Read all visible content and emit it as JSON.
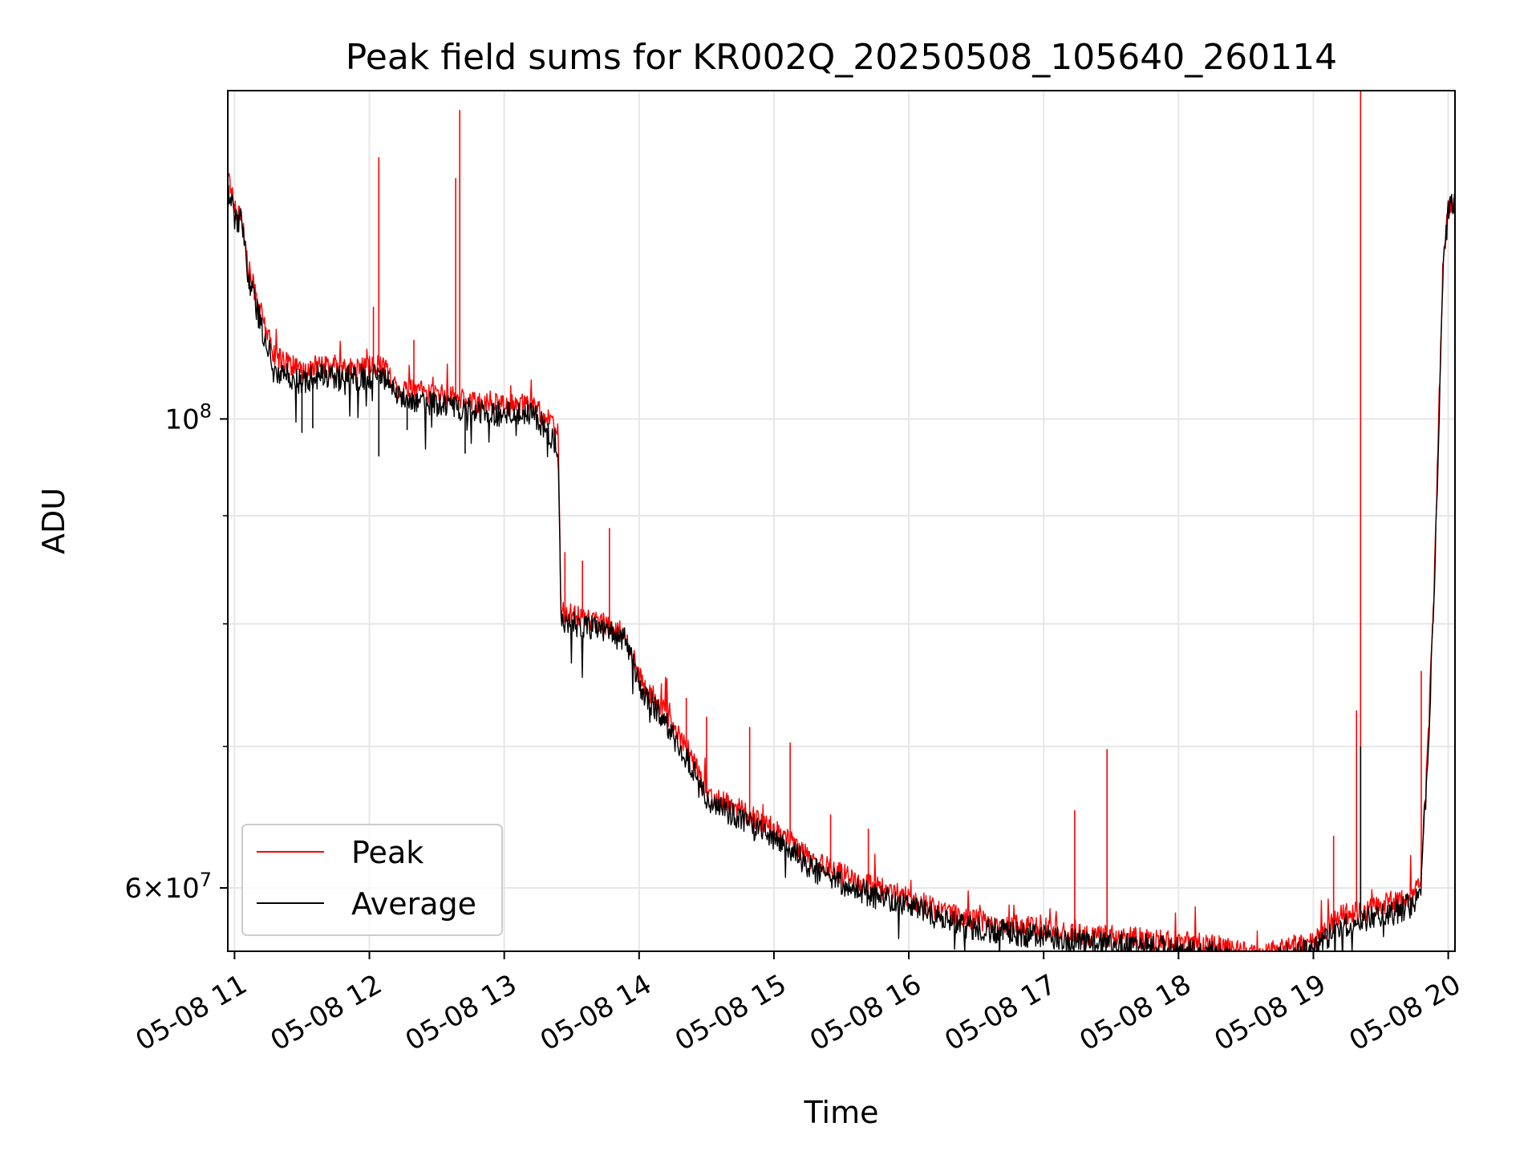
{
  "chart_data": {
    "type": "line",
    "title": "Peak field sums for KR002Q_20250508_105640_260114",
    "xlabel": "Time",
    "ylabel": "ADU",
    "x_unit": "hours of day, 2025-05-08",
    "xlim": [
      10.95,
      20.05
    ],
    "ylim": [
      56000000,
      143000000
    ],
    "yscale": "log",
    "grid": true,
    "legend_position": "lower-left",
    "x_ticks": [
      {
        "value": 11,
        "label": "05-08 11"
      },
      {
        "value": 12,
        "label": "05-08 12"
      },
      {
        "value": 13,
        "label": "05-08 13"
      },
      {
        "value": 14,
        "label": "05-08 14"
      },
      {
        "value": 15,
        "label": "05-08 15"
      },
      {
        "value": 16,
        "label": "05-08 16"
      },
      {
        "value": 17,
        "label": "05-08 17"
      },
      {
        "value": 18,
        "label": "05-08 18"
      },
      {
        "value": 19,
        "label": "05-08 19"
      },
      {
        "value": 20,
        "label": "05-08 20"
      }
    ],
    "y_major_ticks": [
      {
        "value": 100000000,
        "base": "10",
        "exponent": "8",
        "mantissa": ""
      },
      {
        "value": 60000000,
        "base": "10",
        "exponent": "7",
        "mantissa": "6"
      }
    ],
    "y_minor_ticks": [
      70000000,
      80000000,
      90000000
    ],
    "series": [
      {
        "name": "Peak",
        "color": "#ff0000",
        "x": [
          10.95,
          11.0,
          11.05,
          11.1,
          11.2,
          11.3,
          11.4,
          11.5,
          11.6,
          11.8,
          12.0,
          12.1,
          12.2,
          12.4,
          12.6,
          12.8,
          13.0,
          13.2,
          13.3,
          13.4,
          13.42,
          13.5,
          13.7,
          13.9,
          14.0,
          14.2,
          14.4,
          14.5,
          14.7,
          15.0,
          15.3,
          15.6,
          16.0,
          16.3,
          16.6,
          17.0,
          17.3,
          17.6,
          18.0,
          18.3,
          18.6,
          18.8,
          19.0,
          19.2,
          19.4,
          19.6,
          19.75,
          19.8,
          19.85,
          19.9,
          19.93,
          19.96,
          20.0,
          20.05
        ],
        "y": [
          131000000,
          126000000,
          125000000,
          118000000,
          112000000,
          107000000,
          106500000,
          105000000,
          106000000,
          105500000,
          105800000,
          106200000,
          103500000,
          103000000,
          102500000,
          101800000,
          101500000,
          101700000,
          100300000,
          98500000,
          81000000,
          80700000,
          80200000,
          79200000,
          75500000,
          72500000,
          69000000,
          66500000,
          65600000,
          64000000,
          61800000,
          60500000,
          59400000,
          58300000,
          57800000,
          57400000,
          57000000,
          56900000,
          56600000,
          56300000,
          55800000,
          56300000,
          56500000,
          58200000,
          58600000,
          59000000,
          59600000,
          61000000,
          70000000,
          85000000,
          100000000,
          118000000,
          126000000,
          127000000
        ],
        "spikes": [
          {
            "x": 12.07,
            "y": 133000000
          },
          {
            "x": 12.03,
            "y": 113000000
          },
          {
            "x": 12.33,
            "y": 109000000
          },
          {
            "x": 12.64,
            "y": 130000000
          },
          {
            "x": 12.67,
            "y": 140000000
          },
          {
            "x": 13.45,
            "y": 86500000
          },
          {
            "x": 13.58,
            "y": 85700000
          },
          {
            "x": 13.78,
            "y": 88800000
          },
          {
            "x": 14.35,
            "y": 73800000
          },
          {
            "x": 14.5,
            "y": 72300000
          },
          {
            "x": 14.82,
            "y": 71500000
          },
          {
            "x": 15.12,
            "y": 70300000
          },
          {
            "x": 15.42,
            "y": 65000000
          },
          {
            "x": 15.7,
            "y": 64000000
          },
          {
            "x": 17.23,
            "y": 65300000
          },
          {
            "x": 17.47,
            "y": 69800000
          },
          {
            "x": 19.15,
            "y": 63500000
          },
          {
            "x": 19.35,
            "y": 143000000
          },
          {
            "x": 19.32,
            "y": 72800000
          },
          {
            "x": 19.8,
            "y": 76000000
          }
        ]
      },
      {
        "name": "Average",
        "color": "#000000",
        "x": [
          10.95,
          11.0,
          11.05,
          11.1,
          11.2,
          11.3,
          11.4,
          11.5,
          11.6,
          11.8,
          12.0,
          12.1,
          12.2,
          12.4,
          12.6,
          12.8,
          13.0,
          13.2,
          13.3,
          13.4,
          13.42,
          13.5,
          13.7,
          13.9,
          14.0,
          14.2,
          14.4,
          14.5,
          14.7,
          15.0,
          15.3,
          15.6,
          16.0,
          16.3,
          16.6,
          17.0,
          17.3,
          17.6,
          18.0,
          18.3,
          18.6,
          18.8,
          19.0,
          19.2,
          19.4,
          19.6,
          19.75,
          19.8,
          19.85,
          19.9,
          19.93,
          19.96,
          20.0,
          20.05
        ],
        "y": [
          129000000,
          124500000,
          124000000,
          117000000,
          110500000,
          105500000,
          105000000,
          104000000,
          104800000,
          104500000,
          104800000,
          105000000,
          102500000,
          102000000,
          101300000,
          100800000,
          100500000,
          100700000,
          99200000,
          97000000,
          80300000,
          80100000,
          79600000,
          78600000,
          74800000,
          71800000,
          68200000,
          65800000,
          65000000,
          63300000,
          61200000,
          59900000,
          58800000,
          57800000,
          57300000,
          56900000,
          56500000,
          56400000,
          56100000,
          55800000,
          55300000,
          55800000,
          56000000,
          57600000,
          58000000,
          58400000,
          59000000,
          60300000,
          69000000,
          84000000,
          99000000,
          117000000,
          125500000,
          126500000
        ],
        "spikes": [
          {
            "x": 11.5,
            "y": 98500000
          },
          {
            "x": 11.58,
            "y": 99000000
          },
          {
            "x": 12.07,
            "y": 96000000
          },
          {
            "x": 12.28,
            "y": 98800000
          },
          {
            "x": 12.71,
            "y": 96300000
          },
          {
            "x": 19.35,
            "y": 70000000
          }
        ]
      }
    ]
  }
}
